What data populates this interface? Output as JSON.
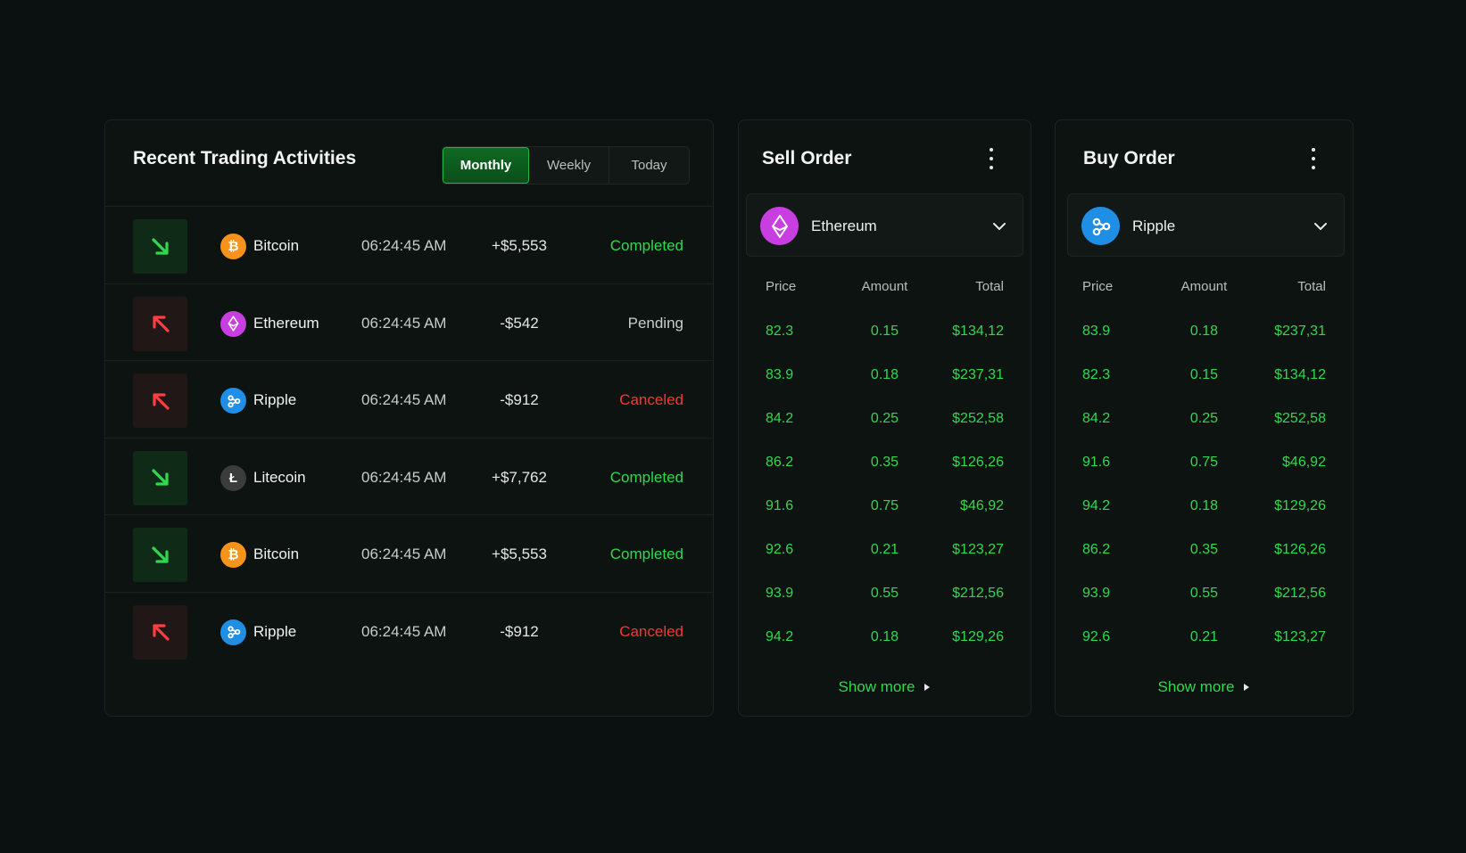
{
  "activities": {
    "title": "Recent Trading Activities",
    "tabs": [
      "Monthly",
      "Weekly",
      "Today"
    ],
    "active_tab": "Monthly",
    "rows": [
      {
        "direction": "up",
        "coin": "Bitcoin",
        "icon": "bitcoin-icon",
        "time": "06:24:45 AM",
        "amount": "+$5,553",
        "status": "Completed"
      },
      {
        "direction": "down",
        "coin": "Ethereum",
        "icon": "ethereum-icon",
        "time": "06:24:45 AM",
        "amount": "-$542",
        "status": "Pending"
      },
      {
        "direction": "down",
        "coin": "Ripple",
        "icon": "ripple-icon",
        "time": "06:24:45 AM",
        "amount": "-$912",
        "status": "Canceled"
      },
      {
        "direction": "up",
        "coin": "Litecoin",
        "icon": "litecoin-icon",
        "time": "06:24:45 AM",
        "amount": "+$7,762",
        "status": "Completed"
      },
      {
        "direction": "up",
        "coin": "Bitcoin",
        "icon": "bitcoin-icon",
        "time": "06:24:45 AM",
        "amount": "+$5,553",
        "status": "Completed"
      },
      {
        "direction": "down",
        "coin": "Ripple",
        "icon": "ripple-icon",
        "time": "06:24:45 AM",
        "amount": "-$912",
        "status": "Canceled"
      }
    ]
  },
  "sell": {
    "title": "Sell Order",
    "selected_coin": "Ethereum",
    "selected_icon": "ethereum-icon",
    "columns": [
      "Price",
      "Amount",
      "Total"
    ],
    "rows": [
      [
        "82.3",
        "0.15",
        "$134,12"
      ],
      [
        "83.9",
        "0.18",
        "$237,31"
      ],
      [
        "84.2",
        "0.25",
        "$252,58"
      ],
      [
        "86.2",
        "0.35",
        "$126,26"
      ],
      [
        "91.6",
        "0.75",
        "$46,92"
      ],
      [
        "92.6",
        "0.21",
        "$123,27"
      ],
      [
        "93.9",
        "0.55",
        "$212,56"
      ],
      [
        "94.2",
        "0.18",
        "$129,26"
      ]
    ],
    "show_more": "Show more"
  },
  "buy": {
    "title": "Buy Order",
    "selected_coin": "Ripple",
    "selected_icon": "ripple-icon",
    "columns": [
      "Price",
      "Amount",
      "Total"
    ],
    "rows": [
      [
        "83.9",
        "0.18",
        "$237,31"
      ],
      [
        "82.3",
        "0.15",
        "$134,12"
      ],
      [
        "84.2",
        "0.25",
        "$252,58"
      ],
      [
        "91.6",
        "0.75",
        "$46,92"
      ],
      [
        "94.2",
        "0.18",
        "$129,26"
      ],
      [
        "86.2",
        "0.35",
        "$126,26"
      ],
      [
        "93.9",
        "0.55",
        "$212,56"
      ],
      [
        "92.6",
        "0.21",
        "$123,27"
      ]
    ],
    "show_more": "Show more"
  },
  "colors": {
    "background": "#0b1110",
    "card": "#0d1311",
    "accent_green": "#2fd94e",
    "danger_red": "#ff3434",
    "bitcoin": "#f7931a",
    "ethereum": "#c93ee0",
    "ripple": "#1f8fe6",
    "litecoin": "#3a3d3c"
  }
}
